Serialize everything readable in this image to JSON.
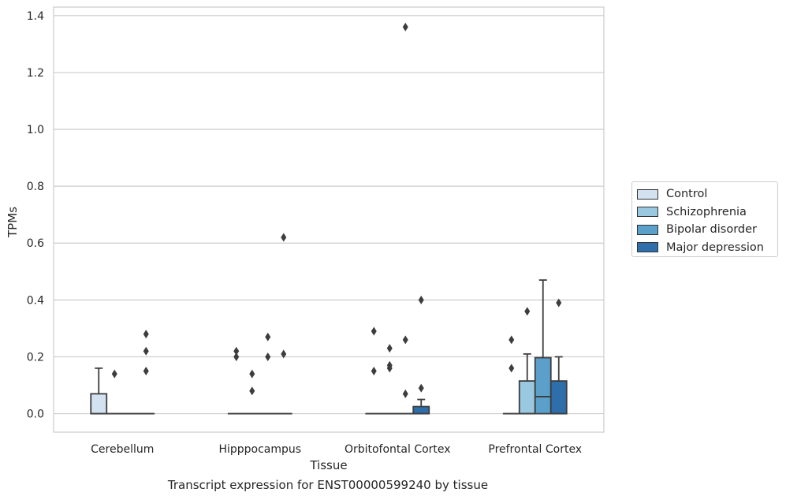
{
  "chart_data": {
    "type": "box",
    "title": "Transcript expression for ENST00000599240 by tissue",
    "xlabel": "Tissue",
    "ylabel": "TPMs",
    "ylim": [
      -0.065,
      1.43
    ],
    "yticks": [
      0.0,
      0.2,
      0.4,
      0.6,
      0.8,
      1.0,
      1.2,
      1.4
    ],
    "ytick_labels": [
      "0.0",
      "0.2",
      "0.4",
      "0.6",
      "0.8",
      "1.0",
      "1.2",
      "1.4"
    ],
    "grid": true,
    "legend_position": "right",
    "categories": [
      "Cerebellum",
      "Hipppocampus",
      "Orbitofontal Cortex",
      "Prefrontal Cortex"
    ],
    "series": [
      {
        "name": "Control",
        "color": "#d2e2f1",
        "boxes": [
          {
            "q1": 0,
            "median": 0,
            "q3": 0.07,
            "whisker_low": 0,
            "whisker_high": 0.16,
            "outliers": []
          },
          {
            "q1": 0,
            "median": 0,
            "q3": 0,
            "whisker_low": 0,
            "whisker_high": 0,
            "outliers": [
              0.22,
              0.2
            ]
          },
          {
            "q1": 0,
            "median": 0,
            "q3": 0,
            "whisker_low": 0,
            "whisker_high": 0,
            "outliers": [
              0.29,
              0.15
            ]
          },
          {
            "q1": 0,
            "median": 0,
            "q3": 0,
            "whisker_low": 0,
            "whisker_high": 0,
            "outliers": [
              0.26,
              0.16
            ]
          }
        ]
      },
      {
        "name": "Schizophrenia",
        "color": "#9ac8e0",
        "boxes": [
          {
            "q1": 0,
            "median": 0,
            "q3": 0,
            "whisker_low": 0,
            "whisker_high": 0,
            "outliers": [
              0.14
            ]
          },
          {
            "q1": 0,
            "median": 0,
            "q3": 0,
            "whisker_low": 0,
            "whisker_high": 0,
            "outliers": [
              0.14,
              0.08
            ]
          },
          {
            "q1": 0,
            "median": 0,
            "q3": 0,
            "whisker_low": 0,
            "whisker_high": 0,
            "outliers": [
              0.23,
              0.17,
              0.16
            ]
          },
          {
            "q1": 0,
            "median": 0,
            "q3": 0.115,
            "whisker_low": 0,
            "whisker_high": 0.21,
            "outliers": [
              0.36
            ]
          }
        ]
      },
      {
        "name": "Bipolar disorder",
        "color": "#5b9fcb",
        "boxes": [
          {
            "q1": 0,
            "median": 0,
            "q3": 0,
            "whisker_low": 0,
            "whisker_high": 0,
            "outliers": []
          },
          {
            "q1": 0,
            "median": 0,
            "q3": 0,
            "whisker_low": 0,
            "whisker_high": 0,
            "outliers": [
              0.27,
              0.2
            ]
          },
          {
            "q1": 0,
            "median": 0,
            "q3": 0,
            "whisker_low": 0,
            "whisker_high": 0,
            "outliers": [
              1.36,
              0.26,
              0.07
            ]
          },
          {
            "q1": 0,
            "median": 0.06,
            "q3": 0.197,
            "whisker_low": 0,
            "whisker_high": 0.47,
            "outliers": []
          }
        ]
      },
      {
        "name": "Major depression",
        "color": "#2d6eab",
        "boxes": [
          {
            "q1": 0,
            "median": 0,
            "q3": 0,
            "whisker_low": 0,
            "whisker_high": 0,
            "outliers": [
              0.28,
              0.22,
              0.15
            ]
          },
          {
            "q1": 0,
            "median": 0,
            "q3": 0,
            "whisker_low": 0,
            "whisker_high": 0,
            "outliers": [
              0.62,
              0.21
            ]
          },
          {
            "q1": 0,
            "median": 0,
            "q3": 0.025,
            "whisker_low": 0,
            "whisker_high": 0.05,
            "outliers": [
              0.4,
              0.09
            ]
          },
          {
            "q1": 0,
            "median": 0,
            "q3": 0.115,
            "whisker_low": 0,
            "whisker_high": 0.2,
            "outliers": [
              0.39
            ]
          }
        ]
      }
    ]
  }
}
